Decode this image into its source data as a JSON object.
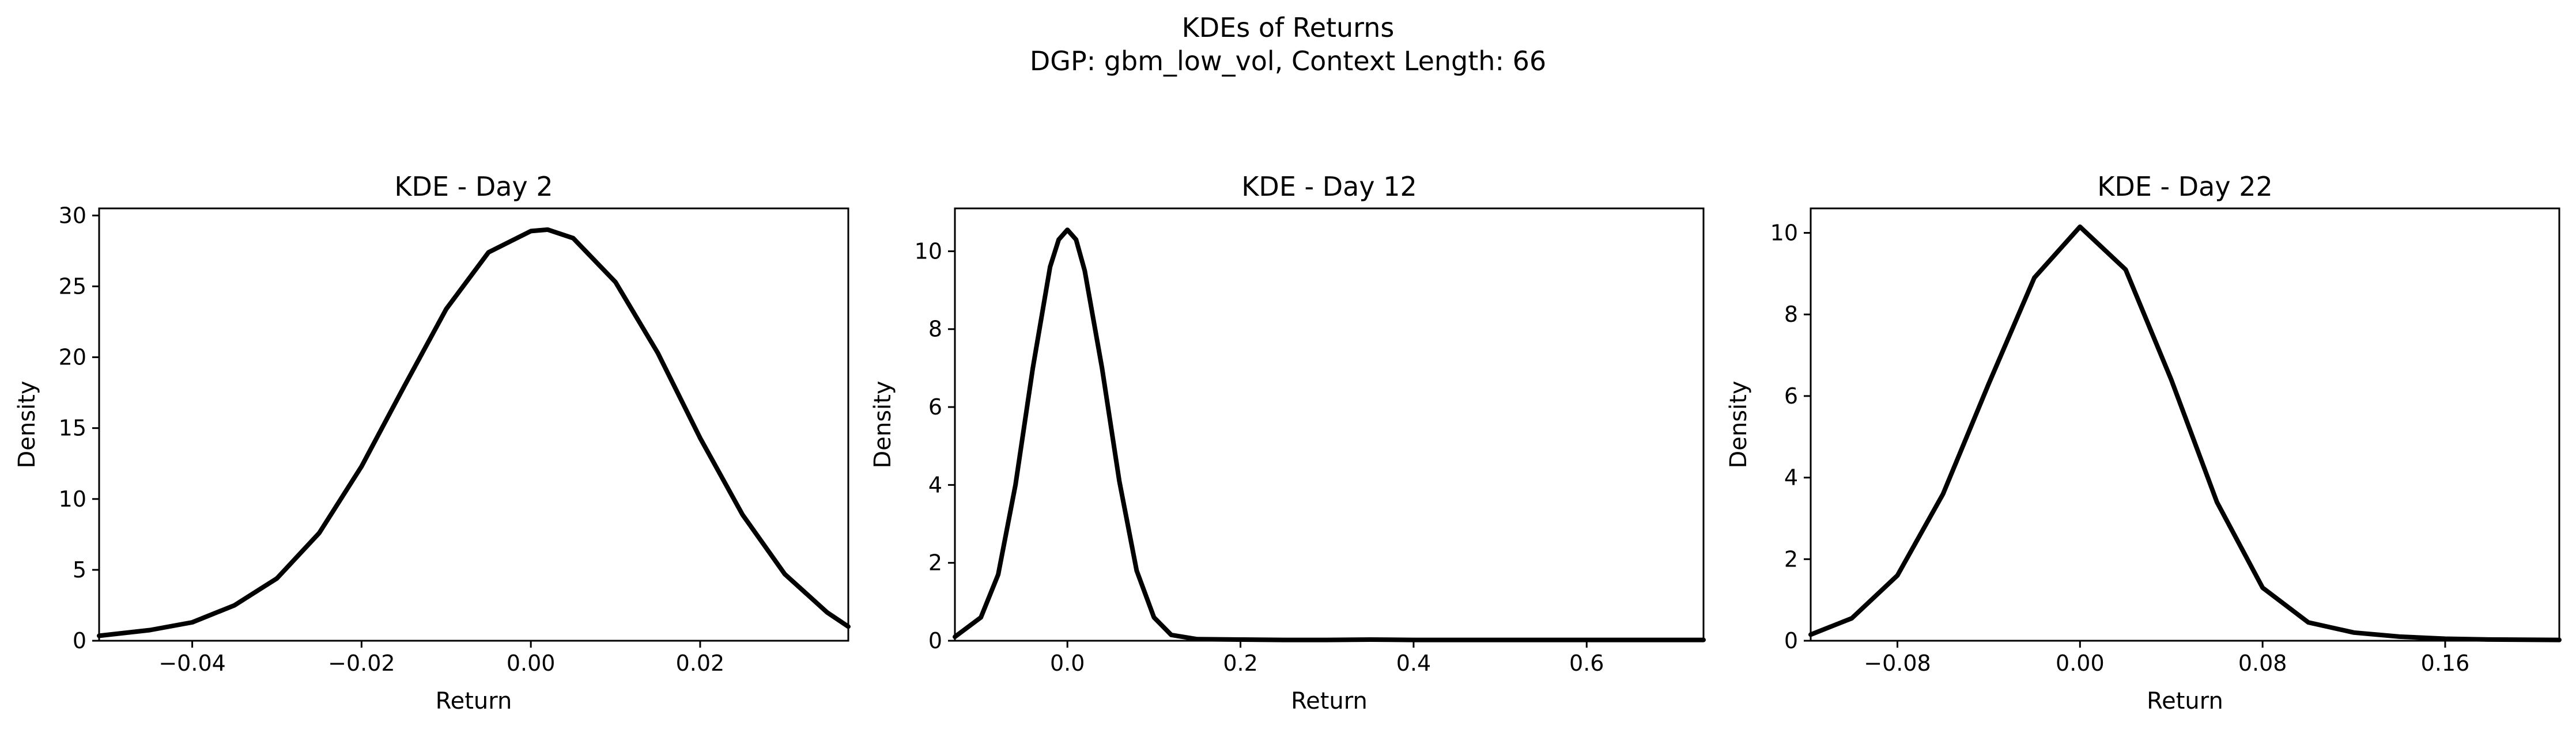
{
  "figure": {
    "title_line1": "KDEs of Returns",
    "title_line2": "DGP: gbm_low_vol, Context Length: 66"
  },
  "chart_data": [
    {
      "type": "line",
      "title": "KDE - Day 2",
      "xlabel": "Return",
      "ylabel": "Density",
      "xlim": [
        -0.051,
        0.0375
      ],
      "ylim": [
        0,
        30.5
      ],
      "xticks": [
        -0.04,
        -0.02,
        0.0,
        0.02
      ],
      "xtick_labels": [
        "−0.04",
        "−0.02",
        "0.00",
        "0.02"
      ],
      "yticks": [
        0,
        5,
        10,
        15,
        20,
        25,
        30
      ],
      "ytick_labels": [
        "0",
        "5",
        "10",
        "15",
        "20",
        "25",
        "30"
      ],
      "line_color": "#000000",
      "series": [
        {
          "x": [
            -0.051,
            -0.045,
            -0.04,
            -0.035,
            -0.03,
            -0.025,
            -0.02,
            -0.015,
            -0.01,
            -0.005,
            0.0,
            0.002,
            0.005,
            0.01,
            0.015,
            0.02,
            0.025,
            0.03,
            0.035,
            0.0375
          ],
          "y": [
            0.35,
            0.75,
            1.3,
            2.5,
            4.4,
            7.6,
            12.3,
            17.9,
            23.4,
            27.4,
            28.9,
            29.0,
            28.4,
            25.3,
            20.3,
            14.3,
            8.9,
            4.7,
            2.0,
            1.0
          ]
        }
      ]
    },
    {
      "type": "line",
      "title": "KDE - Day 12",
      "xlabel": "Return",
      "ylabel": "Density",
      "xlim": [
        -0.13,
        0.735
      ],
      "ylim": [
        0,
        11.1
      ],
      "xticks": [
        0.0,
        0.2,
        0.4,
        0.6
      ],
      "xtick_labels": [
        "0.0",
        "0.2",
        "0.4",
        "0.6"
      ],
      "yticks": [
        0,
        2,
        4,
        6,
        8,
        10
      ],
      "ytick_labels": [
        "0",
        "2",
        "4",
        "6",
        "8",
        "10"
      ],
      "line_color": "#000000",
      "series": [
        {
          "x": [
            -0.13,
            -0.1,
            -0.08,
            -0.06,
            -0.04,
            -0.02,
            -0.01,
            0.0,
            0.01,
            0.02,
            0.04,
            0.06,
            0.08,
            0.1,
            0.12,
            0.15,
            0.2,
            0.25,
            0.3,
            0.35,
            0.4,
            0.5,
            0.6,
            0.735
          ],
          "y": [
            0.1,
            0.6,
            1.7,
            4.0,
            7.0,
            9.6,
            10.3,
            10.55,
            10.3,
            9.5,
            7.0,
            4.1,
            1.8,
            0.6,
            0.15,
            0.04,
            0.03,
            0.02,
            0.02,
            0.03,
            0.02,
            0.02,
            0.02,
            0.02
          ]
        }
      ]
    },
    {
      "type": "line",
      "title": "KDE - Day 22",
      "xlabel": "Return",
      "ylabel": "Density",
      "xlim": [
        -0.118,
        0.21
      ],
      "ylim": [
        0,
        10.6
      ],
      "xticks": [
        -0.08,
        0.0,
        0.08,
        0.16
      ],
      "xtick_labels": [
        "−0.08",
        "0.00",
        "0.08",
        "0.16"
      ],
      "yticks": [
        0,
        2,
        4,
        6,
        8,
        10
      ],
      "ytick_labels": [
        "0",
        "2",
        "4",
        "6",
        "8",
        "10"
      ],
      "line_color": "#000000",
      "series": [
        {
          "x": [
            -0.118,
            -0.1,
            -0.08,
            -0.06,
            -0.04,
            -0.02,
            0.0,
            0.02,
            0.04,
            0.06,
            0.08,
            0.1,
            0.12,
            0.14,
            0.16,
            0.18,
            0.21
          ],
          "y": [
            0.15,
            0.55,
            1.6,
            3.6,
            6.3,
            8.9,
            10.15,
            9.1,
            6.4,
            3.4,
            1.3,
            0.45,
            0.2,
            0.1,
            0.05,
            0.03,
            0.02
          ]
        }
      ]
    }
  ]
}
